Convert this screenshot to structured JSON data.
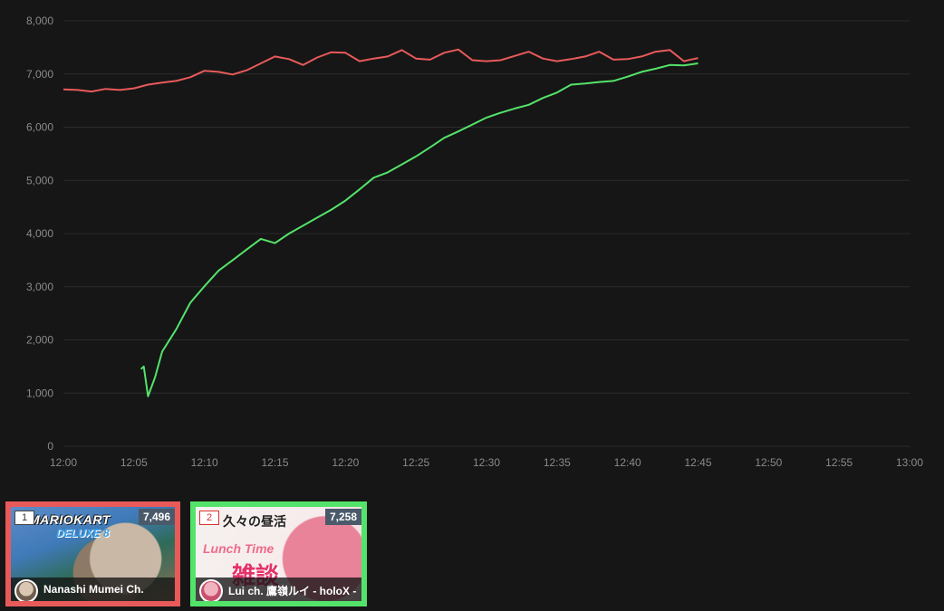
{
  "chart_data": {
    "type": "line",
    "title": "",
    "xlabel": "",
    "ylabel": "",
    "x_range": [
      "12:00",
      "13:00"
    ],
    "x_ticks": [
      "12:00",
      "12:05",
      "12:10",
      "12:15",
      "12:20",
      "12:25",
      "12:30",
      "12:35",
      "12:40",
      "12:45",
      "12:50",
      "12:55",
      "13:00"
    ],
    "ylim": [
      0,
      8000
    ],
    "y_ticks": [
      "0",
      "1,000",
      "2,000",
      "3,000",
      "4,000",
      "5,000",
      "6,000",
      "7,000",
      "8,000"
    ],
    "grid": true,
    "legend": "none",
    "series": [
      {
        "color": "#e85a5a",
        "points": [
          [
            "12:00",
            6710
          ],
          [
            "12:01",
            6700
          ],
          [
            "12:02",
            6670
          ],
          [
            "12:03",
            6720
          ],
          [
            "12:04",
            6700
          ],
          [
            "12:05",
            6730
          ],
          [
            "12:06",
            6800
          ],
          [
            "12:07",
            6840
          ],
          [
            "12:08",
            6870
          ],
          [
            "12:09",
            6940
          ],
          [
            "12:10",
            7060
          ],
          [
            "12:11",
            7040
          ],
          [
            "12:12",
            6990
          ],
          [
            "12:13",
            7070
          ],
          [
            "12:14",
            7200
          ],
          [
            "12:15",
            7330
          ],
          [
            "12:16",
            7280
          ],
          [
            "12:17",
            7170
          ],
          [
            "12:18",
            7310
          ],
          [
            "12:19",
            7410
          ],
          [
            "12:20",
            7400
          ],
          [
            "12:21",
            7240
          ],
          [
            "12:22",
            7290
          ],
          [
            "12:23",
            7330
          ],
          [
            "12:24",
            7450
          ],
          [
            "12:25",
            7290
          ],
          [
            "12:26",
            7270
          ],
          [
            "12:27",
            7400
          ],
          [
            "12:28",
            7460
          ],
          [
            "12:29",
            7260
          ],
          [
            "12:30",
            7240
          ],
          [
            "12:31",
            7260
          ],
          [
            "12:32",
            7340
          ],
          [
            "12:33",
            7420
          ],
          [
            "12:34",
            7290
          ],
          [
            "12:35",
            7240
          ],
          [
            "12:36",
            7280
          ],
          [
            "12:37",
            7330
          ],
          [
            "12:38",
            7420
          ],
          [
            "12:39",
            7270
          ],
          [
            "12:40",
            7280
          ],
          [
            "12:41",
            7330
          ],
          [
            "12:42",
            7420
          ],
          [
            "12:43",
            7450
          ],
          [
            "12:44",
            7240
          ],
          [
            "12:45",
            7300
          ]
        ]
      },
      {
        "color": "#54e36a",
        "points": [
          [
            "12:05.5",
            1450
          ],
          [
            "12:05.7",
            1500
          ],
          [
            "12:06",
            940
          ],
          [
            "12:06.5",
            1300
          ],
          [
            "12:07",
            1780
          ],
          [
            "12:08",
            2200
          ],
          [
            "12:09",
            2700
          ],
          [
            "12:10",
            3010
          ],
          [
            "12:11",
            3300
          ],
          [
            "12:12",
            3500
          ],
          [
            "12:13",
            3700
          ],
          [
            "12:14",
            3900
          ],
          [
            "12:15",
            3820
          ],
          [
            "12:16",
            4000
          ],
          [
            "12:17",
            4150
          ],
          [
            "12:18",
            4300
          ],
          [
            "12:19",
            4450
          ],
          [
            "12:20",
            4620
          ],
          [
            "12:21",
            4830
          ],
          [
            "12:22",
            5050
          ],
          [
            "12:23",
            5150
          ],
          [
            "12:24",
            5300
          ],
          [
            "12:25",
            5450
          ],
          [
            "12:26",
            5620
          ],
          [
            "12:27",
            5800
          ],
          [
            "12:28",
            5920
          ],
          [
            "12:29",
            6050
          ],
          [
            "12:30",
            6180
          ],
          [
            "12:31",
            6270
          ],
          [
            "12:32",
            6350
          ],
          [
            "12:33",
            6420
          ],
          [
            "12:34",
            6550
          ],
          [
            "12:35",
            6650
          ],
          [
            "12:36",
            6800
          ],
          [
            "12:37",
            6820
          ],
          [
            "12:38",
            6850
          ],
          [
            "12:39",
            6870
          ],
          [
            "12:40",
            6950
          ],
          [
            "12:41",
            7040
          ],
          [
            "12:42",
            7100
          ],
          [
            "12:43",
            7170
          ],
          [
            "12:44",
            7160
          ],
          [
            "12:45",
            7200
          ]
        ]
      }
    ]
  },
  "cards": [
    {
      "rank": "1",
      "viewers": "7,496",
      "channel": "Nanashi Mumei Ch.",
      "thumb_title": "MARIOKART",
      "thumb_subtitle": "DELUXE 8",
      "border_color": "#e85a5a"
    },
    {
      "rank": "2",
      "viewers": "7,258",
      "channel": "Lui ch. 鷹嶺ルイ - holoX -",
      "thumb_title": "久々の昼活",
      "thumb_subtitle": "Lunch Time",
      "thumb_big": "雑談",
      "border_color": "#54e36a"
    }
  ]
}
